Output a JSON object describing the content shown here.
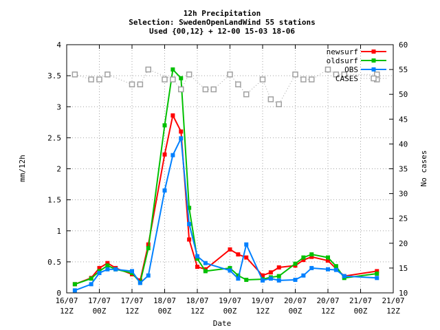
{
  "chart_data": {
    "type": "line",
    "title_lines": [
      "12h Precipitation",
      "Selection: SwedenOpenLandWind     55 stations",
      "Used {00,12} + 12-00 15-03 18-06"
    ],
    "xlabel": "Date",
    "ylabel": "mm/12h",
    "y2label": "No cases",
    "ylim": [
      0,
      4
    ],
    "y2lim": [
      10,
      60
    ],
    "yticks": [
      "0",
      "0.5",
      "1",
      "1.5",
      "2",
      "2.5",
      "3",
      "3.5",
      "4"
    ],
    "y2ticks": [
      "10",
      "15",
      "20",
      "25",
      "30",
      "35",
      "40",
      "45",
      "50",
      "55",
      "60"
    ],
    "xlim": [
      0,
      120
    ],
    "xticks": [
      {
        "t": 0,
        "l1": "16/07",
        "l2": "12Z"
      },
      {
        "t": 12,
        "l1": "17/07",
        "l2": "00Z"
      },
      {
        "t": 24,
        "l1": "17/07",
        "l2": "12Z"
      },
      {
        "t": 36,
        "l1": "18/07",
        "l2": "00Z"
      },
      {
        "t": 48,
        "l1": "18/07",
        "l2": "12Z"
      },
      {
        "t": 60,
        "l1": "19/07",
        "l2": "00Z"
      },
      {
        "t": 72,
        "l1": "19/07",
        "l2": "12Z"
      },
      {
        "t": 84,
        "l1": "20/07",
        "l2": "00Z"
      },
      {
        "t": 96,
        "l1": "20/07",
        "l2": "12Z"
      },
      {
        "t": 108,
        "l1": "21/07",
        "l2": "00Z"
      },
      {
        "t": 120,
        "l1": "21/07",
        "l2": "12Z"
      }
    ],
    "grid": true,
    "legend_position": "top-right",
    "x": [
      3,
      9,
      12,
      15,
      18,
      24,
      27,
      30,
      36,
      39,
      42,
      45,
      48,
      51,
      54,
      60,
      63,
      66,
      72,
      75,
      78,
      84,
      87,
      90,
      96,
      99,
      102,
      114
    ],
    "series": [
      {
        "name": "newsurf",
        "color": "#ff0000",
        "axis": "y",
        "values": [
          0.14,
          0.24,
          0.4,
          0.48,
          0.4,
          0.3,
          0.2,
          0.78,
          2.23,
          2.86,
          2.6,
          0.86,
          0.42,
          0.38,
          null,
          0.7,
          0.62,
          0.57,
          0.28,
          0.33,
          0.41,
          0.44,
          0.53,
          0.58,
          0.52,
          0.39,
          0.27,
          0.35
        ]
      },
      {
        "name": "oldsurf",
        "color": "#00c000",
        "axis": "y",
        "values": [
          0.14,
          0.23,
          0.35,
          0.44,
          0.38,
          0.32,
          0.17,
          0.72,
          2.7,
          3.6,
          3.46,
          1.37,
          0.55,
          0.35,
          null,
          0.4,
          0.28,
          0.21,
          0.22,
          0.25,
          0.27,
          0.47,
          0.57,
          0.62,
          0.57,
          0.43,
          0.24,
          0.31
        ]
      },
      {
        "name": "OBS",
        "color": "#0080ff",
        "axis": "y",
        "values": [
          0.04,
          0.14,
          0.32,
          0.38,
          0.38,
          0.35,
          0.16,
          0.28,
          1.65,
          2.22,
          2.49,
          1.11,
          0.59,
          0.48,
          null,
          0.36,
          0.23,
          0.78,
          0.2,
          0.23,
          0.2,
          0.21,
          0.28,
          0.4,
          0.38,
          0.37,
          0.27,
          0.24
        ]
      },
      {
        "name": "CASES",
        "color": "#a0a0a0",
        "axis": "y2",
        "values": [
          54,
          53,
          53,
          54,
          null,
          52,
          52,
          55,
          null,
          53,
          51,
          54,
          null,
          51,
          51,
          54,
          52,
          50,
          53,
          49,
          48,
          54,
          53,
          53,
          55,
          54,
          54,
          54
        ]
      }
    ],
    "cases_extra": {
      "x": [
        36,
        102,
        114
      ],
      "values": [
        53,
        54,
        53
      ]
    }
  }
}
